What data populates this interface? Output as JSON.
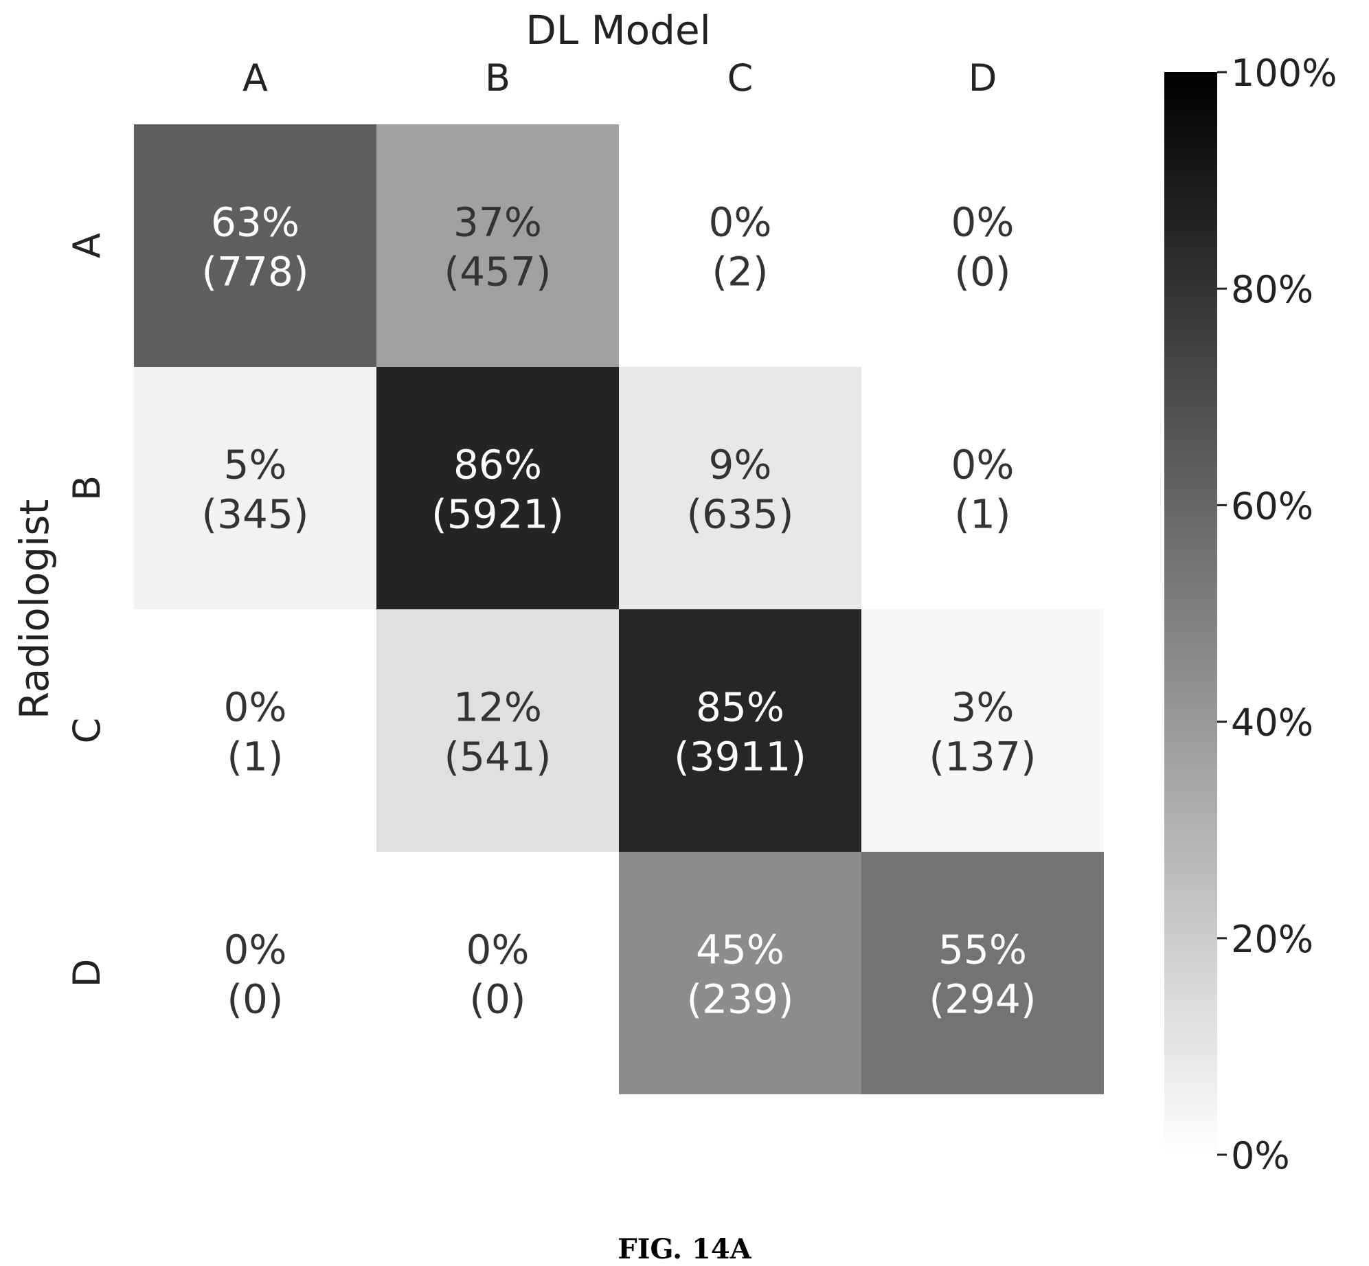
{
  "chart_data": {
    "type": "heatmap",
    "xlabel": "DL Model",
    "ylabel": "Radiologist",
    "x_categories": [
      "A",
      "B",
      "C",
      "D"
    ],
    "y_categories": [
      "A",
      "B",
      "C",
      "D"
    ],
    "cells": [
      [
        {
          "pct": 63,
          "count": 778
        },
        {
          "pct": 37,
          "count": 457
        },
        {
          "pct": 0,
          "count": 2
        },
        {
          "pct": 0,
          "count": 0
        }
      ],
      [
        {
          "pct": 5,
          "count": 345
        },
        {
          "pct": 86,
          "count": 5921
        },
        {
          "pct": 9,
          "count": 635
        },
        {
          "pct": 0,
          "count": 1
        }
      ],
      [
        {
          "pct": 0,
          "count": 1
        },
        {
          "pct": 12,
          "count": 541
        },
        {
          "pct": 85,
          "count": 3911
        },
        {
          "pct": 3,
          "count": 137
        }
      ],
      [
        {
          "pct": 0,
          "count": 0
        },
        {
          "pct": 0,
          "count": 0
        },
        {
          "pct": 45,
          "count": 239
        },
        {
          "pct": 55,
          "count": 294
        }
      ]
    ],
    "colorbar": {
      "min": 0,
      "max": 100,
      "ticks": [
        100,
        80,
        60,
        40,
        20,
        0
      ],
      "tick_labels": [
        "100%",
        "80%",
        "60%",
        "40%",
        "20%",
        "0%"
      ],
      "colormap": "greys"
    }
  },
  "caption": "FIG. 14A"
}
